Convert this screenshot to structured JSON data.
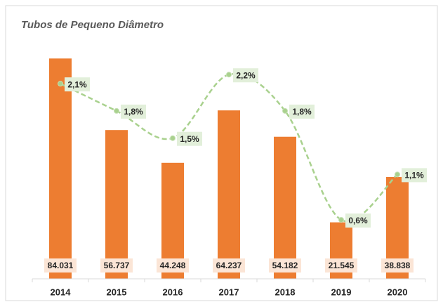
{
  "chart_data": {
    "type": "bar",
    "title": "Tubos de Pequeno Diâmetro",
    "categories": [
      "2014",
      "2015",
      "2016",
      "2017",
      "2018",
      "2019",
      "2020"
    ],
    "series": [
      {
        "type": "bar",
        "color": "#ed7d31",
        "values": [
          84031,
          56737,
          44248,
          64237,
          54182,
          21545,
          38838
        ],
        "value_labels": [
          "84.031",
          "56.737",
          "44.248",
          "64.237",
          "54.182",
          "21.545",
          "38.838"
        ]
      },
      {
        "type": "line",
        "axis": "y2",
        "color": "#a9d18e",
        "values": [
          2.1,
          1.8,
          1.5,
          2.2,
          1.8,
          0.6,
          1.1
        ],
        "value_labels": [
          "2,1%",
          "1,8%",
          "1,5%",
          "2,2%",
          "1,8%",
          "0,6%",
          "1,1%"
        ]
      }
    ],
    "ylim": [
      0,
      90000
    ],
    "y2lim": [
      -0.05,
      2.55
    ]
  }
}
